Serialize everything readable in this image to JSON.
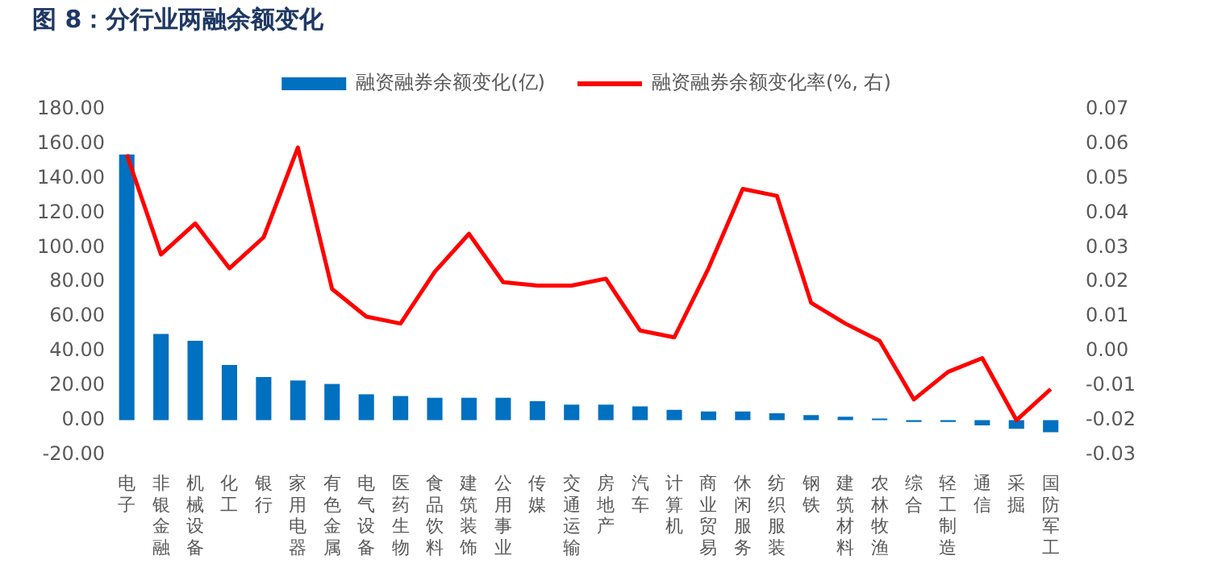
{
  "chart_data": {
    "type": "bar",
    "title": "图 8：分行业两融余额变化",
    "categories": [
      "电子",
      "非银金融",
      "机械设备",
      "化工",
      "银行",
      "家用电器",
      "有色金属",
      "电气设备",
      "医药生物",
      "食品饮料",
      "建筑装饰",
      "公用事业",
      "传媒",
      "交通运输",
      "房地产",
      "汽车",
      "计算机",
      "商业贸易",
      "休闲服务",
      "纺织服装",
      "钢铁",
      "建筑材料",
      "农林牧渔",
      "综合",
      "轻工制造",
      "通信",
      "采掘",
      "国防军工"
    ],
    "series": [
      {
        "name": "融资融券余额变化(亿)",
        "color": "#0070c0",
        "values": [
          154,
          50,
          46,
          32,
          25,
          23,
          21,
          15,
          14,
          13,
          13,
          13,
          11,
          9,
          9,
          8,
          6,
          5,
          5,
          4,
          3,
          2,
          1,
          -1,
          -1,
          -3,
          -5,
          -7
        ]
      },
      {
        "name": "融资融券余额变化率(%, 右)",
        "type": "line",
        "axis": "y2",
        "color": "#ff0000",
        "values": [
          0.057,
          0.028,
          0.037,
          0.024,
          0.033,
          0.059,
          0.018,
          0.01,
          0.008,
          0.023,
          0.034,
          0.02,
          0.019,
          0.019,
          0.021,
          0.006,
          0.004,
          0.024,
          0.047,
          0.045,
          0.014,
          0.008,
          0.003,
          -0.014,
          -0.006,
          -0.002,
          -0.02,
          -0.011
        ]
      }
    ],
    "ylim": [
      -20,
      180
    ],
    "yticks": [
      {
        "value": -20,
        "label": "-20.00"
      },
      {
        "value": 0,
        "label": "0.00"
      },
      {
        "value": 20,
        "label": "20.00"
      },
      {
        "value": 40,
        "label": "40.00"
      },
      {
        "value": 60,
        "label": "60.00"
      },
      {
        "value": 80,
        "label": "80.00"
      },
      {
        "value": 100,
        "label": "100.00"
      },
      {
        "value": 120,
        "label": "120.00"
      },
      {
        "value": 140,
        "label": "140.00"
      },
      {
        "value": 160,
        "label": "160.00"
      },
      {
        "value": 180,
        "label": "180.00"
      }
    ],
    "y2lim": [
      -0.03,
      0.07
    ],
    "y2ticks": [
      {
        "value": -0.03,
        "label": "-0.03"
      },
      {
        "value": -0.02,
        "label": "-0.02"
      },
      {
        "value": -0.01,
        "label": "-0.01"
      },
      {
        "value": 0,
        "label": "0.00"
      },
      {
        "value": 0.01,
        "label": "0.01"
      },
      {
        "value": 0.02,
        "label": "0.02"
      },
      {
        "value": 0.03,
        "label": "0.03"
      },
      {
        "value": 0.04,
        "label": "0.04"
      },
      {
        "value": 0.05,
        "label": "0.05"
      },
      {
        "value": 0.06,
        "label": "0.06"
      },
      {
        "value": 0.07,
        "label": "0.07"
      }
    ],
    "legend": "top",
    "grid": false,
    "marker": "none",
    "line_style": "solid"
  }
}
